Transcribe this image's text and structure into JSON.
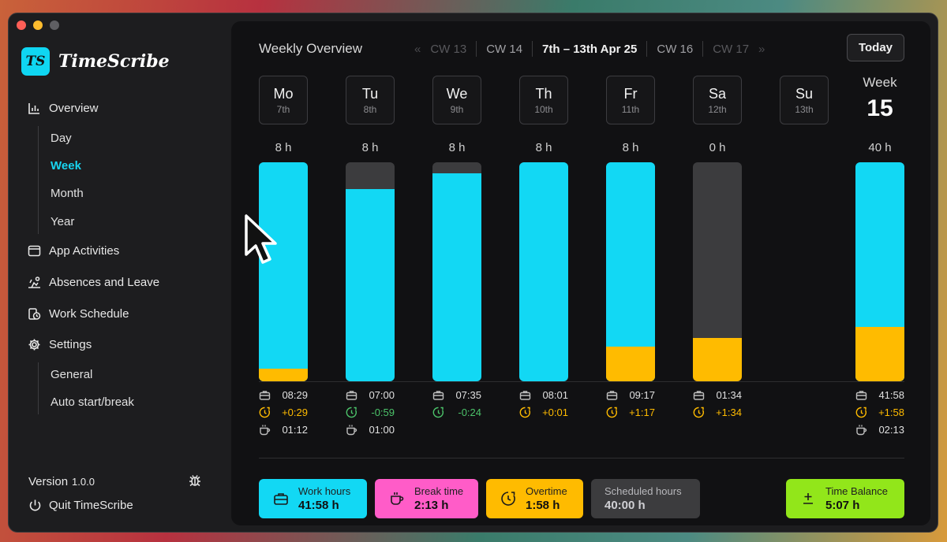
{
  "app": {
    "logo_badge": "TS",
    "name": "TimeScribe",
    "version_label": "Version",
    "version": "1.0.0",
    "quit_label": "Quit TimeScribe"
  },
  "sidebar": {
    "overview": "Overview",
    "overview_items": [
      "Day",
      "Week",
      "Month",
      "Year"
    ],
    "active_item": "Week",
    "app_activities": "App Activities",
    "absences": "Absences and Leave",
    "work_schedule": "Work Schedule",
    "settings": "Settings",
    "settings_items": [
      "General",
      "Auto start/break"
    ]
  },
  "header": {
    "title": "Weekly Overview",
    "prev_chevron": "«",
    "next_chevron": "»",
    "weeks": [
      "CW 13",
      "CW 14",
      "7th – 13th Apr 25",
      "CW 16",
      "CW 17"
    ],
    "today_button": "Today"
  },
  "days": [
    {
      "day": "Mo",
      "date": "7th",
      "hours_label": "8 h",
      "work_fraction": 1.0,
      "overtime_fraction": 0.057,
      "work": "08:29",
      "balance": "+0:29",
      "balance_type": "plus",
      "break": "01:12"
    },
    {
      "day": "Tu",
      "date": "8th",
      "hours_label": "8 h",
      "work_fraction": 0.877,
      "overtime_fraction": 0,
      "work": "07:00",
      "balance": "-0:59",
      "balance_type": "minus",
      "break": "01:00"
    },
    {
      "day": "We",
      "date": "9th",
      "hours_label": "8 h",
      "work_fraction": 0.95,
      "overtime_fraction": 0,
      "work": "07:35",
      "balance": "-0:24",
      "balance_type": "minus",
      "break": ""
    },
    {
      "day": "Th",
      "date": "10th",
      "hours_label": "8 h",
      "work_fraction": 1.0,
      "overtime_fraction": 0,
      "work": "08:01",
      "balance": "+0:01",
      "balance_type": "plus",
      "break": ""
    },
    {
      "day": "Fr",
      "date": "11th",
      "hours_label": "8 h",
      "work_fraction": 1.0,
      "overtime_fraction": 0.157,
      "work": "09:17",
      "balance": "+1:17",
      "balance_type": "plus",
      "break": ""
    },
    {
      "day": "Sa",
      "date": "12th",
      "hours_label": "0 h",
      "work_fraction": 0.0,
      "overtime_fraction": 0.197,
      "work": "01:34",
      "balance": "+1:34",
      "balance_type": "plus",
      "break": ""
    },
    {
      "day": "Su",
      "date": "13th",
      "hours_label": "",
      "work_fraction": null,
      "overtime_fraction": 0,
      "work": "",
      "balance": "",
      "balance_type": "",
      "break": ""
    }
  ],
  "week_total": {
    "label": "Week",
    "number": "15",
    "hours_label": "40 h",
    "work_fraction": 1.0,
    "overtime_fraction": 0.247,
    "work": "41:58",
    "balance": "+1:58",
    "break": "02:13"
  },
  "legend": [
    {
      "label": "Work hours",
      "value": "41:58 h",
      "color": "#12d8f4",
      "icon": "briefcase-icon"
    },
    {
      "label": "Break time",
      "value": "2:13 h",
      "color": "#ff5cc8",
      "icon": "coffee-cup-icon"
    },
    {
      "label": "Overtime",
      "value": "1:58 h",
      "color": "#ffbb00",
      "icon": "clock-up-icon"
    },
    {
      "label": "Scheduled hours",
      "value": "40:00 h",
      "color": "#3c3c3e",
      "icon": ""
    },
    {
      "label": "Time Balance",
      "value": "5:07 h",
      "color": "#92e61a",
      "icon": "plus-minus-icon"
    }
  ],
  "colors": {
    "accent": "#12d8f4",
    "overtime": "#ffbb00",
    "negative": "#4cc36a",
    "scheduled": "#3c3c3e"
  }
}
